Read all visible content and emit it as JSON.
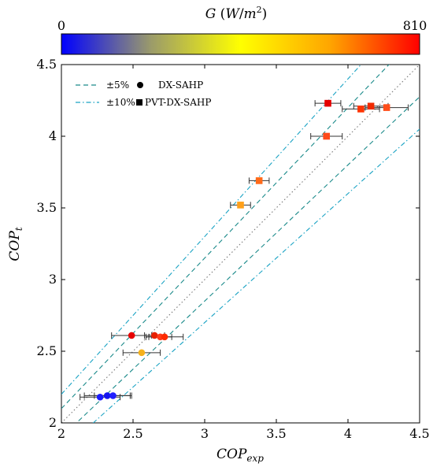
{
  "chart_data": {
    "type": "scatter",
    "xlabel": "COP",
    "xlabel_sub": "exp",
    "ylabel": "COP",
    "ylabel_sub": "t",
    "xlim": [
      2,
      4.5
    ],
    "ylim": [
      2,
      4.5
    ],
    "x_ticks": [
      "2",
      "2.5",
      "3",
      "3.5",
      "4",
      "4.5"
    ],
    "y_ticks": [
      "2",
      "2.5",
      "3",
      "3.5",
      "4",
      "4.5"
    ],
    "grid": false,
    "legend_placement": "top-left",
    "colorbar": {
      "title": "G (W/m²)",
      "min": 0,
      "max": 810,
      "min_label": "0",
      "max_label": "810",
      "colors": [
        "#0000ff",
        "#9b9b6a",
        "#ffff00",
        "#ffa500",
        "#ff0000"
      ]
    },
    "reference_lines": [
      {
        "name": "±5%",
        "style": "dashed",
        "color": "#1a8a8a",
        "factors": [
          1.05,
          0.95
        ]
      },
      {
        "name": "±10%",
        "style": "dashdot",
        "color": "#1aa3c4",
        "factors": [
          1.1,
          0.9
        ]
      },
      {
        "style": "dotted",
        "color": "#777777",
        "factors": [
          1.0
        ]
      }
    ],
    "series": [
      {
        "name": "DX-SAHP",
        "marker": "circle",
        "points": [
          {
            "x": 2.27,
            "y": 2.18,
            "xerr": 0.14,
            "color": "#1a1aff"
          },
          {
            "x": 2.32,
            "y": 2.19,
            "xerr": 0.16,
            "color": "#1414f0"
          },
          {
            "x": 2.36,
            "y": 2.19,
            "xerr": 0.13,
            "color": "#2020ff"
          },
          {
            "x": 2.49,
            "y": 2.61,
            "xerr": 0.14,
            "color": "#e60000"
          },
          {
            "x": 2.65,
            "y": 2.61,
            "xerr": 0.07,
            "color": "#e62000"
          },
          {
            "x": 2.69,
            "y": 2.6,
            "xerr": 0.08,
            "color": "#ff3a1a"
          },
          {
            "x": 2.72,
            "y": 2.6,
            "xerr": 0.13,
            "color": "#ff2a00"
          },
          {
            "x": 2.56,
            "y": 2.49,
            "xerr": 0.13,
            "color": "#f5b21c"
          }
        ]
      },
      {
        "name": "PVT-DX-SAHP",
        "marker": "square",
        "points": [
          {
            "x": 3.25,
            "y": 3.52,
            "xerr": 0.07,
            "color": "#ffa01a"
          },
          {
            "x": 3.38,
            "y": 3.69,
            "xerr": 0.07,
            "color": "#ff6a1a"
          },
          {
            "x": 3.85,
            "y": 4.0,
            "xerr": 0.11,
            "color": "#ff4a1a"
          },
          {
            "x": 3.86,
            "y": 4.23,
            "xerr": 0.09,
            "color": "#e60000"
          },
          {
            "x": 4.09,
            "y": 4.19,
            "xerr": 0.13,
            "color": "#ff3300"
          },
          {
            "x": 4.16,
            "y": 4.21,
            "xerr": 0.12,
            "color": "#f02a00"
          },
          {
            "x": 4.27,
            "y": 4.2,
            "xerr": 0.15,
            "color": "#ff4d1a"
          }
        ]
      }
    ]
  }
}
